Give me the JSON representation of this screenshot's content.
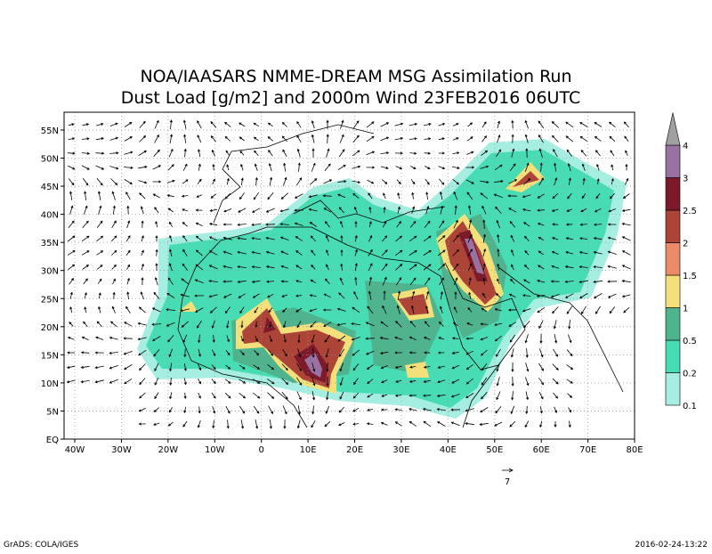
{
  "title": [
    "NOA/IAASARS NMME-DREAM MSG Assimilation Run",
    "Dust Load [g/m2] and 2000m Wind 23FEB2016 06UTC"
  ],
  "lon_ticks": [
    "40W",
    "30W",
    "20W",
    "10W",
    "0",
    "10E",
    "20E",
    "30E",
    "40E",
    "50E",
    "60E",
    "70E",
    "80E"
  ],
  "lat_ticks": [
    "EQ",
    "5N",
    "10N",
    "15N",
    "20N",
    "25N",
    "30N",
    "35N",
    "40N",
    "45N",
    "50N",
    "55N"
  ],
  "colorbar": {
    "labels": [
      "0.1",
      "0.2",
      "0.5",
      "1",
      "1.5",
      "2",
      "2.5",
      "3",
      "4"
    ],
    "colors": [
      "#a6eee2",
      "#48dcb4",
      "#4fb48e",
      "#f4e07a",
      "#ec8a6c",
      "#ad4438",
      "#7c1a2c",
      "#9a72a2",
      "#a0a0a0"
    ]
  },
  "wind_reference": "7",
  "footer_left": "GrADS: COLA/IGES",
  "footer_right": "2016-02-24-13:22"
}
